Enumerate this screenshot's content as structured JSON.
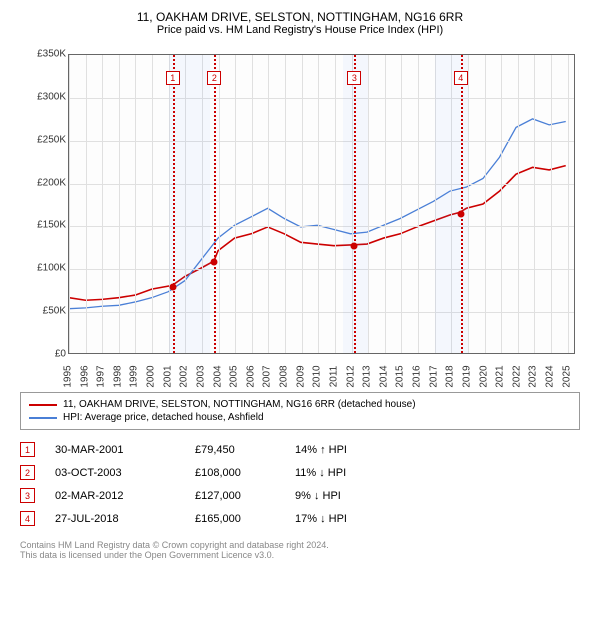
{
  "title": "11, OAKHAM DRIVE, SELSTON, NOTTINGHAM, NG16 6RR",
  "subtitle": "Price paid vs. HM Land Registry's House Price Index (HPI)",
  "chart": {
    "type": "line",
    "ylim": [
      0,
      350000
    ],
    "ytick_step": 50000,
    "yticks": [
      "£0",
      "£50K",
      "£100K",
      "£150K",
      "£200K",
      "£250K",
      "£300K",
      "£350K"
    ],
    "xlim": [
      1995,
      2025.5
    ],
    "xticks": [
      1995,
      1996,
      1997,
      1998,
      1999,
      2000,
      2001,
      2002,
      2003,
      2004,
      2005,
      2006,
      2007,
      2008,
      2009,
      2010,
      2011,
      2012,
      2013,
      2014,
      2015,
      2016,
      2017,
      2018,
      2019,
      2020,
      2021,
      2022,
      2023,
      2024,
      2025
    ],
    "background_color": "#fdfdfd",
    "grid_color": "#e0e0e0",
    "recession_band_color": "rgba(100,150,255,0.06)",
    "recession_bands": [
      [
        2001,
        2003.5
      ],
      [
        2011.5,
        2013
      ],
      [
        2017,
        2019
      ]
    ],
    "series": [
      {
        "label": "11, OAKHAM DRIVE, SELSTON, NOTTINGHAM, NG16 6RR (detached house)",
        "color": "#cc0000",
        "width": 1.6,
        "data": [
          [
            1995,
            65000
          ],
          [
            1996,
            62000
          ],
          [
            1997,
            63000
          ],
          [
            1998,
            65000
          ],
          [
            1999,
            68000
          ],
          [
            2000,
            75000
          ],
          [
            2001.24,
            79450
          ],
          [
            2002,
            90000
          ],
          [
            2003,
            100000
          ],
          [
            2003.75,
            108000
          ],
          [
            2004,
            120000
          ],
          [
            2005,
            135000
          ],
          [
            2006,
            140000
          ],
          [
            2007,
            148000
          ],
          [
            2008,
            140000
          ],
          [
            2009,
            130000
          ],
          [
            2010,
            128000
          ],
          [
            2011,
            126000
          ],
          [
            2012.17,
            127000
          ],
          [
            2013,
            128000
          ],
          [
            2014,
            135000
          ],
          [
            2015,
            140000
          ],
          [
            2016,
            148000
          ],
          [
            2017,
            155000
          ],
          [
            2018,
            162000
          ],
          [
            2018.57,
            165000
          ],
          [
            2019,
            170000
          ],
          [
            2020,
            175000
          ],
          [
            2021,
            190000
          ],
          [
            2022,
            210000
          ],
          [
            2023,
            218000
          ],
          [
            2024,
            215000
          ],
          [
            2025,
            220000
          ]
        ]
      },
      {
        "label": "HPI: Average price, detached house, Ashfield",
        "color": "#4a7fd6",
        "width": 1.3,
        "data": [
          [
            1995,
            52000
          ],
          [
            1996,
            53000
          ],
          [
            1997,
            55000
          ],
          [
            1998,
            56000
          ],
          [
            1999,
            60000
          ],
          [
            2000,
            65000
          ],
          [
            2001,
            72000
          ],
          [
            2002,
            85000
          ],
          [
            2003,
            110000
          ],
          [
            2004,
            135000
          ],
          [
            2005,
            150000
          ],
          [
            2006,
            160000
          ],
          [
            2007,
            170000
          ],
          [
            2008,
            158000
          ],
          [
            2009,
            148000
          ],
          [
            2010,
            150000
          ],
          [
            2011,
            145000
          ],
          [
            2012,
            140000
          ],
          [
            2013,
            142000
          ],
          [
            2014,
            150000
          ],
          [
            2015,
            158000
          ],
          [
            2016,
            168000
          ],
          [
            2017,
            178000
          ],
          [
            2018,
            190000
          ],
          [
            2019,
            195000
          ],
          [
            2020,
            205000
          ],
          [
            2021,
            230000
          ],
          [
            2022,
            265000
          ],
          [
            2023,
            275000
          ],
          [
            2024,
            268000
          ],
          [
            2025,
            272000
          ]
        ]
      }
    ],
    "markers": [
      {
        "n": "1",
        "x": 2001.24,
        "dot_y": 79450
      },
      {
        "n": "2",
        "x": 2003.75,
        "dot_y": 108000
      },
      {
        "n": "3",
        "x": 2012.17,
        "dot_y": 127000
      },
      {
        "n": "4",
        "x": 2018.57,
        "dot_y": 165000
      }
    ]
  },
  "sales": [
    {
      "n": "1",
      "date": "30-MAR-2001",
      "price": "£79,450",
      "diff": "14% ↑ HPI"
    },
    {
      "n": "2",
      "date": "03-OCT-2003",
      "price": "£108,000",
      "diff": "11% ↓ HPI"
    },
    {
      "n": "3",
      "date": "02-MAR-2012",
      "price": "£127,000",
      "diff": "9% ↓ HPI"
    },
    {
      "n": "4",
      "date": "27-JUL-2018",
      "price": "£165,000",
      "diff": "17% ↓ HPI"
    }
  ],
  "footer": {
    "line1": "Contains HM Land Registry data © Crown copyright and database right 2024.",
    "line2": "This data is licensed under the Open Government Licence v3.0."
  }
}
